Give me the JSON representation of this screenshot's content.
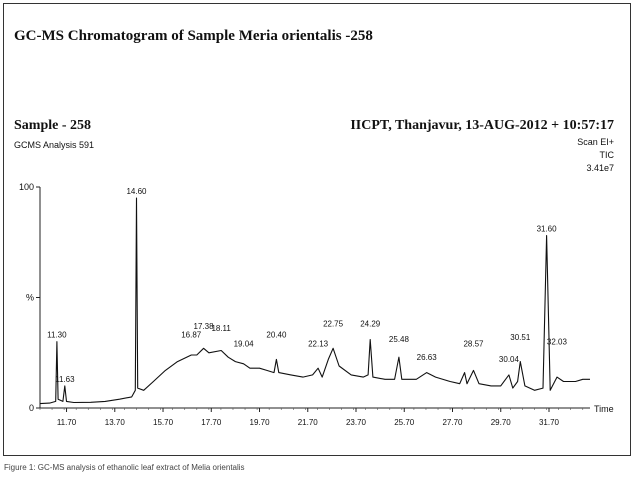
{
  "header": {
    "title": "GC-MS Chromatogram of Sample Meria orientalis -258",
    "sample": "Sample - 258",
    "analysis": "GCMS Analysis 591",
    "instrument": "IICPT, Thanjavur, 13-AUG-2012 + 10:57:17",
    "scan_lines": [
      "Scan EI+",
      "TIC",
      "3.41e7"
    ]
  },
  "caption": "Figure 1: GC-MS analysis of ethanolic leaf extract of Melia orientalis",
  "chart_data": {
    "type": "line",
    "title": "GC-MS Chromatogram of Sample Meria orientalis -258",
    "xlabel": "Time",
    "ylabel": "%",
    "xlim": [
      10.6,
      33.4
    ],
    "ylim": [
      0,
      100
    ],
    "x_ticks": [
      "11.70",
      "13.70",
      "15.70",
      "17.70",
      "19.70",
      "21.70",
      "23.70",
      "25.70",
      "27.70",
      "29.70",
      "31.70"
    ],
    "y_ticks": [
      "0",
      "%",
      "100"
    ],
    "peaks": [
      {
        "x": 11.3,
        "label": "11.30",
        "y": 30
      },
      {
        "x": 11.63,
        "label": "11.63",
        "y": 10
      },
      {
        "x": 14.6,
        "label": "14.60",
        "y": 95
      },
      {
        "x": 16.87,
        "label": "16.87",
        "y": 30
      },
      {
        "x": 17.38,
        "label": "17.38",
        "y": 34
      },
      {
        "x": 18.11,
        "label": "18.11",
        "y": 33
      },
      {
        "x": 19.04,
        "label": "19.04",
        "y": 26
      },
      {
        "x": 20.4,
        "label": "20.40",
        "y": 30
      },
      {
        "x": 22.13,
        "label": "22.13",
        "y": 26
      },
      {
        "x": 22.75,
        "label": "22.75",
        "y": 35
      },
      {
        "x": 24.29,
        "label": "24.29",
        "y": 35
      },
      {
        "x": 25.48,
        "label": "25.48",
        "y": 28
      },
      {
        "x": 26.63,
        "label": "26.63",
        "y": 20
      },
      {
        "x": 28.57,
        "label": "28.57",
        "y": 26
      },
      {
        "x": 30.04,
        "label": "30.04",
        "y": 19
      },
      {
        "x": 30.51,
        "label": "30.51",
        "y": 29
      },
      {
        "x": 31.6,
        "label": "31.60",
        "y": 78
      },
      {
        "x": 32.03,
        "label": "32.03",
        "y": 27
      }
    ],
    "trace": [
      [
        10.6,
        2
      ],
      [
        11.0,
        2.2
      ],
      [
        11.25,
        3
      ],
      [
        11.3,
        30
      ],
      [
        11.35,
        4
      ],
      [
        11.55,
        3
      ],
      [
        11.63,
        10
      ],
      [
        11.7,
        3
      ],
      [
        12.0,
        2.5
      ],
      [
        12.7,
        2.6
      ],
      [
        13.3,
        3
      ],
      [
        13.9,
        4
      ],
      [
        14.4,
        5
      ],
      [
        14.55,
        8
      ],
      [
        14.6,
        95
      ],
      [
        14.65,
        9
      ],
      [
        14.9,
        8
      ],
      [
        15.3,
        12
      ],
      [
        15.8,
        17
      ],
      [
        16.3,
        21
      ],
      [
        16.87,
        24
      ],
      [
        17.1,
        24
      ],
      [
        17.38,
        27
      ],
      [
        17.6,
        25
      ],
      [
        18.11,
        26
      ],
      [
        18.4,
        23
      ],
      [
        18.7,
        21
      ],
      [
        19.04,
        20
      ],
      [
        19.3,
        18
      ],
      [
        19.7,
        18
      ],
      [
        20.0,
        17
      ],
      [
        20.3,
        16
      ],
      [
        20.4,
        22
      ],
      [
        20.5,
        16
      ],
      [
        21.0,
        15
      ],
      [
        21.5,
        14
      ],
      [
        21.9,
        15
      ],
      [
        22.13,
        18
      ],
      [
        22.3,
        14
      ],
      [
        22.55,
        22
      ],
      [
        22.75,
        27
      ],
      [
        23.0,
        19
      ],
      [
        23.5,
        15
      ],
      [
        24.0,
        14
      ],
      [
        24.2,
        15
      ],
      [
        24.29,
        31
      ],
      [
        24.4,
        14
      ],
      [
        24.9,
        13
      ],
      [
        25.3,
        13
      ],
      [
        25.48,
        23
      ],
      [
        25.6,
        13
      ],
      [
        26.2,
        13
      ],
      [
        26.63,
        16
      ],
      [
        27.0,
        14
      ],
      [
        27.6,
        12
      ],
      [
        28.0,
        11
      ],
      [
        28.2,
        16
      ],
      [
        28.3,
        11
      ],
      [
        28.57,
        17
      ],
      [
        28.8,
        11
      ],
      [
        29.3,
        10
      ],
      [
        29.7,
        10
      ],
      [
        30.04,
        15
      ],
      [
        30.2,
        9
      ],
      [
        30.4,
        12
      ],
      [
        30.51,
        21
      ],
      [
        30.7,
        10
      ],
      [
        31.1,
        8
      ],
      [
        31.45,
        9
      ],
      [
        31.6,
        78
      ],
      [
        31.75,
        8
      ],
      [
        32.03,
        14
      ],
      [
        32.3,
        12
      ],
      [
        32.8,
        12
      ],
      [
        33.1,
        13
      ],
      [
        33.4,
        13
      ]
    ]
  }
}
